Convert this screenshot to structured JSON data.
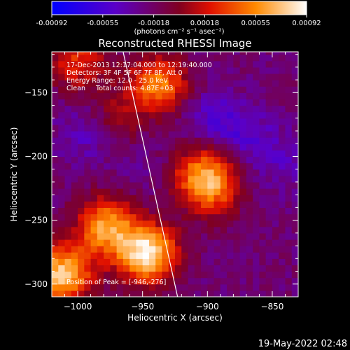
{
  "colorbar": {
    "tick_labels": [
      "-0.00092",
      "-0.00055",
      "-0.00018",
      "0.00018",
      "0.00055",
      "0.00092"
    ],
    "unit_label": "(photons cm⁻² s⁻¹ asec⁻²)"
  },
  "plot": {
    "title": "Reconstructed RHESSI Image",
    "info_lines": [
      "17-Dec-2013 12:17:04.000 to 12:19:40.000",
      "Detectors: 3F 4F 5F 6F 7F 8F, Att 0",
      "Energy Range: 12.0 - 25.0 keV",
      "Clean     Total counts: 4.87E+03"
    ],
    "peak_label": "Position of Peak = [-946,-276]"
  },
  "footer": {
    "timestamp": "19-May-2022 02:48"
  },
  "chart_data": {
    "type": "heatmap",
    "title": "Reconstructed RHESSI Image",
    "xlabel": "Heliocentric X (arcsec)",
    "ylabel": "Heliocentric Y (arcsec)",
    "xlim": [
      -1020,
      -830
    ],
    "ylim": [
      -310,
      -118
    ],
    "x_ticks": [
      -1000,
      -950,
      -900,
      -850
    ],
    "x_tick_labels": [
      "−1000",
      "−950",
      "−900",
      "−850"
    ],
    "y_ticks": [
      -150,
      -200,
      -250,
      -300
    ],
    "y_tick_labels": [
      "−150",
      "−200",
      "−250",
      "−300"
    ],
    "color_range": [
      -0.00092,
      0.00092
    ],
    "peak_position": [
      -946,
      -276
    ],
    "limb_line": [
      [
        -965,
        -118
      ],
      [
        -923,
        -310
      ]
    ],
    "bright_regions": [
      {
        "x": -946,
        "y": -276,
        "value": 0.00092
      },
      {
        "x": -1012,
        "y": -292,
        "value": 0.0008
      },
      {
        "x": -978,
        "y": -255,
        "value": 0.00065
      },
      {
        "x": -938,
        "y": -143,
        "value": 0.00055
      },
      {
        "x": -905,
        "y": -213,
        "value": 0.0004
      },
      {
        "x": -895,
        "y": -225,
        "value": 0.0003
      },
      {
        "x": -1000,
        "y": -125,
        "value": 0.0003
      },
      {
        "x": -975,
        "y": -172,
        "value": 0.00015
      }
    ],
    "dim_regions": [
      {
        "x": -990,
        "y": -180,
        "value": -0.00055
      },
      {
        "x": -895,
        "y": -170,
        "value": -0.0005
      },
      {
        "x": -868,
        "y": -185,
        "value": -0.00045
      },
      {
        "x": -950,
        "y": -210,
        "value": -0.0003
      },
      {
        "x": -840,
        "y": -205,
        "value": -0.0004
      }
    ]
  }
}
